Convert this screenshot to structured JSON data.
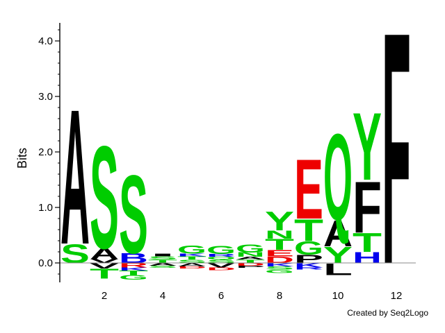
{
  "chart_data": {
    "type": "sequence-logo",
    "title": "",
    "ylabel": "Bits",
    "xlabel": "",
    "ylim": [
      -0.35,
      4.3
    ],
    "yticks": [
      0.0,
      1.0,
      2.0,
      3.0,
      4.0
    ],
    "yticklabels": [
      "0.0",
      "1.0",
      "2.0",
      "3.0",
      "4.0"
    ],
    "xticks": [
      2,
      4,
      6,
      8,
      10,
      12
    ],
    "xticklabels": [
      "2",
      "4",
      "6",
      "8",
      "10",
      "12"
    ],
    "positions": [
      1,
      2,
      3,
      4,
      5,
      6,
      7,
      8,
      9,
      10,
      11,
      12
    ],
    "colors": {
      "green": "#00cc00",
      "black": "#000000",
      "blue": "#0000ee",
      "red": "#ee0000"
    },
    "stacks": [
      {
        "position": 1,
        "above": [
          {
            "letter": "S",
            "height": 0.35,
            "color": "green"
          },
          {
            "letter": "A",
            "height": 2.5,
            "color": "black"
          }
        ],
        "below": []
      },
      {
        "position": 2,
        "above": [
          {
            "letter": "V",
            "height": 0.07,
            "color": "black"
          },
          {
            "letter": "A",
            "height": 0.2,
            "color": "black"
          },
          {
            "letter": "S",
            "height": 1.9,
            "color": "green"
          }
        ],
        "below": [
          {
            "letter": "V",
            "height": 0.1,
            "color": "black"
          },
          {
            "letter": "T",
            "height": 0.18,
            "color": "green"
          }
        ]
      },
      {
        "position": 3,
        "above": [
          {
            "letter": "B",
            "height": 0.18,
            "color": "blue"
          },
          {
            "letter": "S",
            "height": 1.45,
            "color": "green"
          }
        ],
        "below": [
          {
            "letter": "R",
            "height": 0.08,
            "color": "red"
          },
          {
            "letter": "K",
            "height": 0.06,
            "color": "blue"
          },
          {
            "letter": "T",
            "height": 0.08,
            "color": "green"
          },
          {
            "letter": "G",
            "height": 0.08,
            "color": "green"
          }
        ]
      },
      {
        "position": 4,
        "above": [
          {
            "letter": "T",
            "height": 0.06,
            "color": "green"
          },
          {
            "letter": "S",
            "height": 0.06,
            "color": "green"
          },
          {
            "letter": "I",
            "height": 0.05,
            "color": "black"
          }
        ],
        "below": [
          {
            "letter": "A",
            "height": 0.05,
            "color": "black"
          },
          {
            "letter": "S",
            "height": 0.04,
            "color": "green"
          }
        ]
      },
      {
        "position": 5,
        "above": [
          {
            "letter": "S",
            "height": 0.06,
            "color": "green"
          },
          {
            "letter": "T",
            "height": 0.06,
            "color": "green"
          },
          {
            "letter": "K",
            "height": 0.05,
            "color": "blue"
          },
          {
            "letter": "G",
            "height": 0.15,
            "color": "green"
          }
        ],
        "below": [
          {
            "letter": "A",
            "height": 0.06,
            "color": "black"
          },
          {
            "letter": "D",
            "height": 0.04,
            "color": "red"
          }
        ]
      },
      {
        "position": 6,
        "above": [
          {
            "letter": "S",
            "height": 0.06,
            "color": "green"
          },
          {
            "letter": "Q",
            "height": 0.05,
            "color": "green"
          },
          {
            "letter": "R",
            "height": 0.05,
            "color": "blue"
          },
          {
            "letter": "G",
            "height": 0.15,
            "color": "green"
          }
        ],
        "below": [
          {
            "letter": "V",
            "height": 0.08,
            "color": "black"
          },
          {
            "letter": "D",
            "height": 0.05,
            "color": "red"
          }
        ]
      },
      {
        "position": 7,
        "above": [
          {
            "letter": "T",
            "height": 0.06,
            "color": "green"
          },
          {
            "letter": "A",
            "height": 0.05,
            "color": "black"
          },
          {
            "letter": "N",
            "height": 0.08,
            "color": "green"
          },
          {
            "letter": "G",
            "height": 0.15,
            "color": "green"
          }
        ],
        "below": [
          {
            "letter": "D",
            "height": 0.05,
            "color": "red"
          },
          {
            "letter": "P",
            "height": 0.04,
            "color": "black"
          }
        ]
      },
      {
        "position": 8,
        "above": [
          {
            "letter": "D",
            "height": 0.12,
            "color": "red"
          },
          {
            "letter": "E",
            "height": 0.12,
            "color": "red"
          },
          {
            "letter": "T",
            "height": 0.2,
            "color": "green"
          },
          {
            "letter": "N",
            "height": 0.15,
            "color": "green"
          },
          {
            "letter": "Y",
            "height": 0.35,
            "color": "green"
          }
        ],
        "below": [
          {
            "letter": "K",
            "height": 0.06,
            "color": "blue"
          },
          {
            "letter": "S",
            "height": 0.06,
            "color": "green"
          },
          {
            "letter": "G",
            "height": 0.06,
            "color": "green"
          }
        ]
      },
      {
        "position": 9,
        "above": [
          {
            "letter": "P",
            "height": 0.15,
            "color": "black"
          },
          {
            "letter": "G",
            "height": 0.25,
            "color": "green"
          },
          {
            "letter": "T",
            "height": 0.4,
            "color": "green"
          },
          {
            "letter": "E",
            "height": 1.1,
            "color": "red"
          }
        ],
        "below": [
          {
            "letter": "K",
            "height": 0.08,
            "color": "blue"
          },
          {
            "letter": "R",
            "height": 0.04,
            "color": "blue"
          }
        ]
      },
      {
        "position": 10,
        "above": [
          {
            "letter": "Y",
            "height": 0.3,
            "color": "green"
          },
          {
            "letter": "A",
            "height": 0.48,
            "color": "black"
          },
          {
            "letter": "Q",
            "height": 1.6,
            "color": "green"
          }
        ],
        "below": [
          {
            "letter": "L",
            "height": 0.22,
            "color": "black"
          }
        ]
      },
      {
        "position": 11,
        "above": [
          {
            "letter": "H",
            "height": 0.2,
            "color": "blue"
          },
          {
            "letter": "T",
            "height": 0.35,
            "color": "green"
          },
          {
            "letter": "F",
            "height": 0.95,
            "color": "black"
          },
          {
            "letter": "Y",
            "height": 1.25,
            "color": "green"
          }
        ],
        "below": []
      },
      {
        "position": 12,
        "above": [
          {
            "letter": "F",
            "height": 4.3,
            "color": "black"
          }
        ],
        "below": []
      }
    ]
  },
  "credit": "Created by Seq2Logo"
}
